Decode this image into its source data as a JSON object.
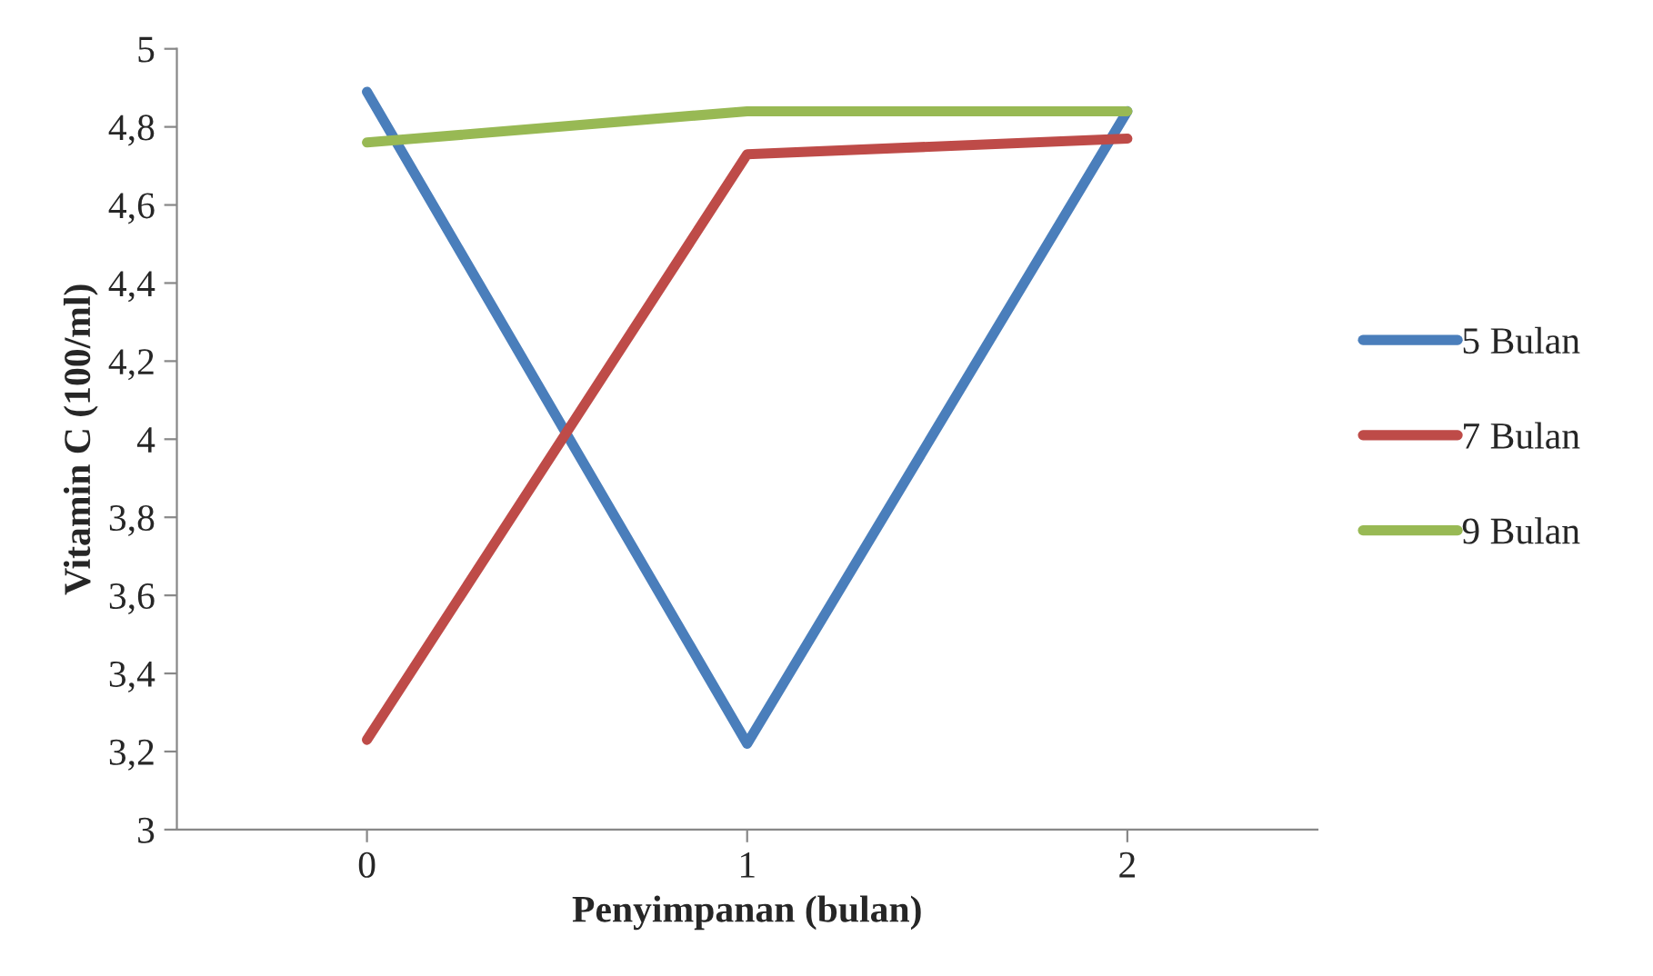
{
  "chart_data": {
    "type": "line",
    "xlabel": "Penyimpanan (bulan)",
    "ylabel": "Vitamin C (100/ml)",
    "categories": [
      "0",
      "1",
      "2"
    ],
    "series": [
      {
        "name": "5 Bulan",
        "color": "#4a7ebb",
        "values": [
          4.89,
          3.22,
          4.84
        ]
      },
      {
        "name": "7 Bulan",
        "color": "#be4b48",
        "values": [
          3.23,
          4.73,
          4.77
        ]
      },
      {
        "name": "9 Bulan",
        "color": "#98b954",
        "values": [
          4.76,
          4.84,
          4.84
        ]
      }
    ],
    "ylim": [
      3,
      5
    ],
    "yticks": [
      3,
      {
        "value": 3.2,
        "label": "3,2"
      },
      {
        "value": 3.4,
        "label": "3,4"
      },
      {
        "value": 3.6,
        "label": "3,6"
      },
      {
        "value": 3.8,
        "label": "3,8"
      },
      4,
      {
        "value": 4.2,
        "label": "4,2"
      },
      {
        "value": 4.4,
        "label": "4,4"
      },
      {
        "value": 4.6,
        "label": "4,6"
      },
      {
        "value": 4.8,
        "label": "4,8"
      },
      5
    ],
    "grid": false,
    "legend": "right",
    "marker": "none",
    "line_style": "solid"
  }
}
